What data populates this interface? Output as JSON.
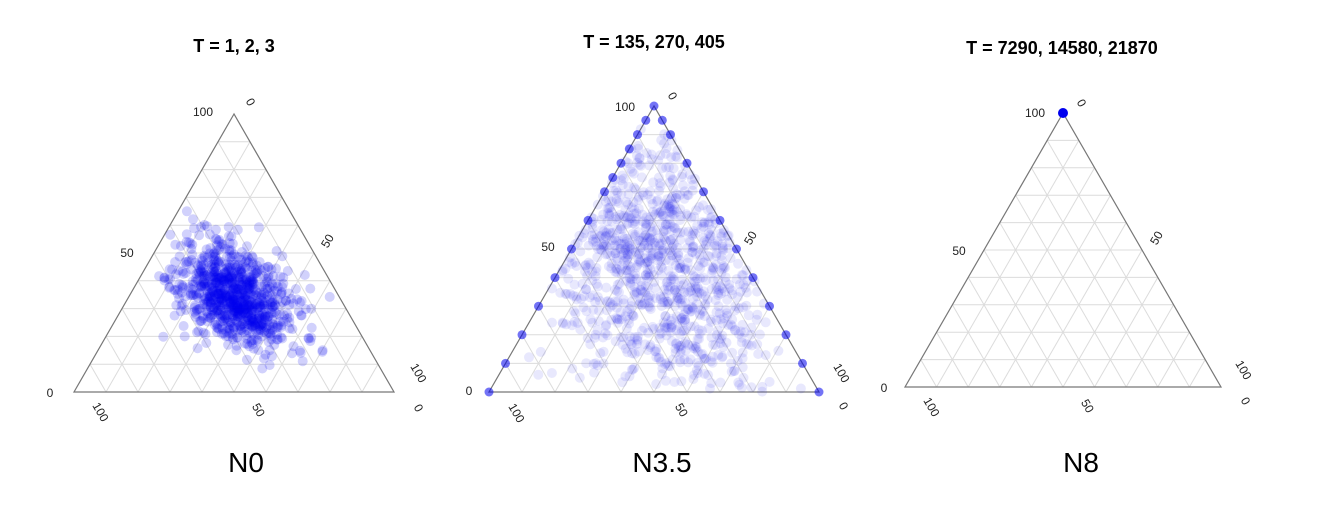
{
  "chart_data": [
    {
      "type": "scatter",
      "subtype": "ternary",
      "title": "T = 1, 2, 3",
      "caption": "N0",
      "axis_ticks": {
        "left": [
          "100",
          "50",
          "0"
        ],
        "right": [
          "0",
          "50",
          "100"
        ],
        "bottom": [
          "100",
          "50",
          "0"
        ]
      },
      "grid": true,
      "marker_color": "#0000ee",
      "distribution": {
        "core_points": [
          [
            35,
            33,
            32
          ],
          [
            40,
            30,
            30
          ],
          [
            32,
            38,
            30
          ],
          [
            30,
            30,
            40
          ],
          [
            45,
            28,
            27
          ],
          [
            30,
            40,
            30
          ],
          [
            33,
            33,
            34
          ],
          [
            38,
            35,
            27
          ],
          [
            28,
            35,
            37
          ],
          [
            36,
            28,
            36
          ]
        ],
        "spread": 8,
        "count": 900,
        "opacity": 0.18
      },
      "edge_points": []
    },
    {
      "type": "scatter",
      "subtype": "ternary",
      "title": "T = 135, 270, 405",
      "caption": "N3.5",
      "axis_ticks": {
        "left": [
          "100",
          "50",
          "0"
        ],
        "right": [
          "0",
          "50",
          "100"
        ],
        "bottom": [
          "100",
          "50",
          "0"
        ]
      },
      "grid": true,
      "marker_color": "#0000ee",
      "distribution": {
        "core_points": [
          [
            70,
            15,
            15
          ],
          [
            55,
            22,
            23
          ],
          [
            60,
            25,
            15
          ],
          [
            45,
            30,
            25
          ],
          [
            40,
            30,
            30
          ],
          [
            50,
            20,
            30
          ],
          [
            80,
            10,
            10
          ],
          [
            30,
            35,
            35
          ],
          [
            35,
            40,
            25
          ],
          [
            25,
            30,
            45
          ]
        ],
        "spread": 18,
        "count": 1400,
        "opacity": 0.09
      },
      "edge_points": [
        [
          100,
          0,
          0
        ],
        [
          95,
          5,
          0
        ],
        [
          90,
          10,
          0
        ],
        [
          85,
          15,
          0
        ],
        [
          80,
          20,
          0
        ],
        [
          75,
          25,
          0
        ],
        [
          70,
          30,
          0
        ],
        [
          60,
          40,
          0
        ],
        [
          50,
          50,
          0
        ],
        [
          40,
          60,
          0
        ],
        [
          30,
          70,
          0
        ],
        [
          20,
          80,
          0
        ],
        [
          10,
          90,
          0
        ],
        [
          0,
          100,
          0
        ],
        [
          95,
          0,
          5
        ],
        [
          90,
          0,
          10
        ],
        [
          80,
          0,
          20
        ],
        [
          70,
          0,
          30
        ],
        [
          60,
          0,
          40
        ],
        [
          50,
          0,
          50
        ],
        [
          40,
          0,
          60
        ],
        [
          30,
          0,
          70
        ],
        [
          20,
          0,
          80
        ],
        [
          10,
          0,
          90
        ],
        [
          0,
          0,
          100
        ]
      ]
    },
    {
      "type": "scatter",
      "subtype": "ternary",
      "title": "T = 7290, 14580, 21870",
      "caption": "N8",
      "axis_ticks": {
        "left": [
          "100",
          "50",
          "0"
        ],
        "right": [
          "0",
          "50",
          "100"
        ],
        "bottom": [
          "100",
          "50",
          "0"
        ]
      },
      "grid": true,
      "marker_color": "#0000ee",
      "distribution": {
        "core_points": [],
        "spread": 0,
        "count": 0,
        "opacity": 0
      },
      "edge_points": [
        [
          100,
          0,
          0
        ]
      ]
    }
  ]
}
